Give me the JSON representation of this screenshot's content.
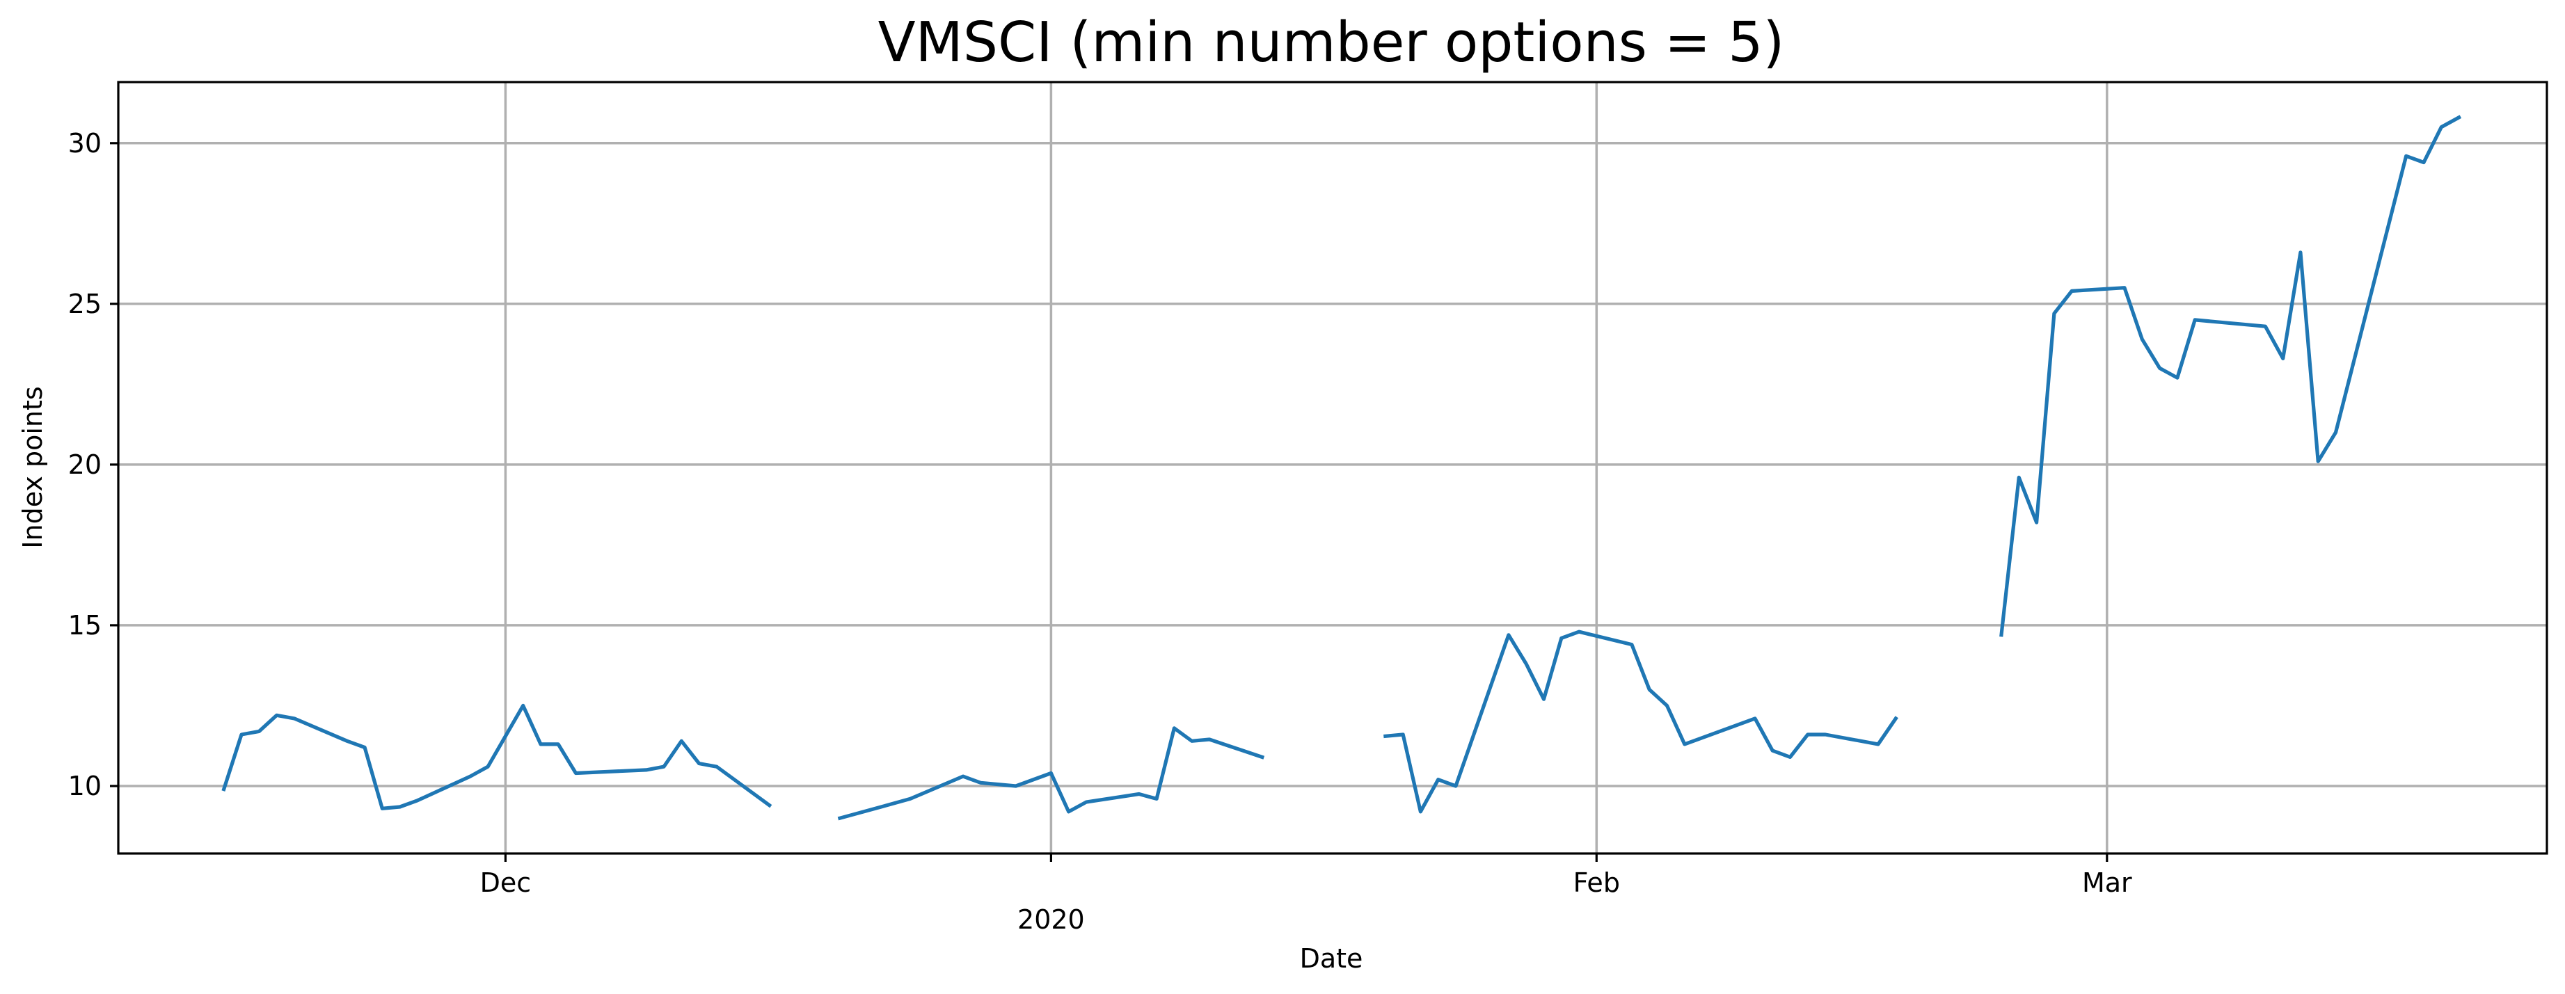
{
  "chart_data": {
    "type": "line",
    "title": "VMSCI (min number options = 5)",
    "xlabel": "Date",
    "ylabel": "Index points",
    "x_range": [
      "2019-11-09",
      "2020-03-26"
    ],
    "ylim": [
      7.9,
      31.9
    ],
    "grid": true,
    "x_ticks": [
      {
        "date": "2019-12-01",
        "label": "Dec"
      },
      {
        "date": "2020-01-01",
        "label": "2020"
      },
      {
        "date": "2020-02-01",
        "label": "Feb"
      },
      {
        "date": "2020-03-01",
        "label": "Mar"
      }
    ],
    "y_ticks": [
      10,
      15,
      20,
      25,
      30
    ],
    "series": [
      {
        "color": "#1f77b4",
        "segments": [
          [
            [
              "2019-11-15",
              9.9
            ],
            [
              "2019-11-16",
              11.6
            ],
            [
              "2019-11-17",
              11.7
            ],
            [
              "2019-11-18",
              12.2
            ],
            [
              "2019-11-19",
              12.1
            ],
            [
              "2019-11-22",
              11.4
            ],
            [
              "2019-11-23",
              11.2
            ],
            [
              "2019-11-24",
              9.3
            ],
            [
              "2019-11-25",
              9.35
            ],
            [
              "2019-11-26",
              9.55
            ],
            [
              "2019-11-29",
              10.3
            ],
            [
              "2019-11-30",
              10.6
            ],
            [
              "2019-12-02",
              12.5
            ],
            [
              "2019-12-03",
              11.3
            ],
            [
              "2019-12-04",
              11.3
            ],
            [
              "2019-12-05",
              10.4
            ],
            [
              "2019-12-09",
              10.5
            ],
            [
              "2019-12-10",
              10.6
            ],
            [
              "2019-12-11",
              11.4
            ],
            [
              "2019-12-12",
              10.7
            ],
            [
              "2019-12-13",
              10.6
            ],
            [
              "2019-12-16",
              9.4
            ]
          ],
          [
            [
              "2019-12-20",
              9.0
            ],
            [
              "2019-12-23",
              9.45
            ],
            [
              "2019-12-24",
              9.6
            ],
            [
              "2019-12-27",
              10.3
            ],
            [
              "2019-12-28",
              10.1
            ],
            [
              "2019-12-30",
              10.0
            ],
            [
              "2020-01-01",
              10.4
            ],
            [
              "2020-01-02",
              9.2
            ],
            [
              "2020-01-03",
              9.5
            ],
            [
              "2020-01-06",
              9.75
            ],
            [
              "2020-01-07",
              9.6
            ],
            [
              "2020-01-08",
              11.8
            ],
            [
              "2020-01-09",
              11.4
            ],
            [
              "2020-01-10",
              11.45
            ],
            [
              "2020-01-13",
              10.9
            ]
          ],
          [
            [
              "2020-01-20",
              11.55
            ],
            [
              "2020-01-21",
              11.6
            ],
            [
              "2020-01-22",
              9.2
            ],
            [
              "2020-01-23",
              10.2
            ],
            [
              "2020-01-24",
              10.0
            ],
            [
              "2020-01-27",
              14.7
            ],
            [
              "2020-01-28",
              13.8
            ],
            [
              "2020-01-29",
              12.7
            ],
            [
              "2020-01-30",
              14.6
            ],
            [
              "2020-01-31",
              14.8
            ],
            [
              "2020-02-03",
              14.4
            ],
            [
              "2020-02-04",
              13.0
            ],
            [
              "2020-02-05",
              12.5
            ],
            [
              "2020-02-06",
              11.3
            ],
            [
              "2020-02-10",
              12.1
            ],
            [
              "2020-02-11",
              11.1
            ],
            [
              "2020-02-12",
              10.9
            ],
            [
              "2020-02-13",
              11.6
            ],
            [
              "2020-02-14",
              11.6
            ],
            [
              "2020-02-17",
              11.3
            ],
            [
              "2020-02-18",
              12.1
            ]
          ],
          [
            [
              "2020-02-24",
              14.7
            ],
            [
              "2020-02-25",
              19.6
            ],
            [
              "2020-02-26",
              18.2
            ],
            [
              "2020-02-27",
              24.7
            ],
            [
              "2020-02-28",
              25.4
            ],
            [
              "2020-03-02",
              25.5
            ],
            [
              "2020-03-03",
              23.9
            ],
            [
              "2020-03-04",
              23.0
            ],
            [
              "2020-03-05",
              22.7
            ],
            [
              "2020-03-06",
              24.5
            ],
            [
              "2020-03-10",
              24.3
            ],
            [
              "2020-03-11",
              23.3
            ],
            [
              "2020-03-12",
              26.6
            ],
            [
              "2020-03-13",
              20.1
            ],
            [
              "2020-03-14",
              21.0
            ],
            [
              "2020-03-18",
              29.6
            ],
            [
              "2020-03-19",
              29.4
            ],
            [
              "2020-03-20",
              30.5
            ],
            [
              "2020-03-21",
              30.8
            ]
          ]
        ]
      }
    ]
  }
}
